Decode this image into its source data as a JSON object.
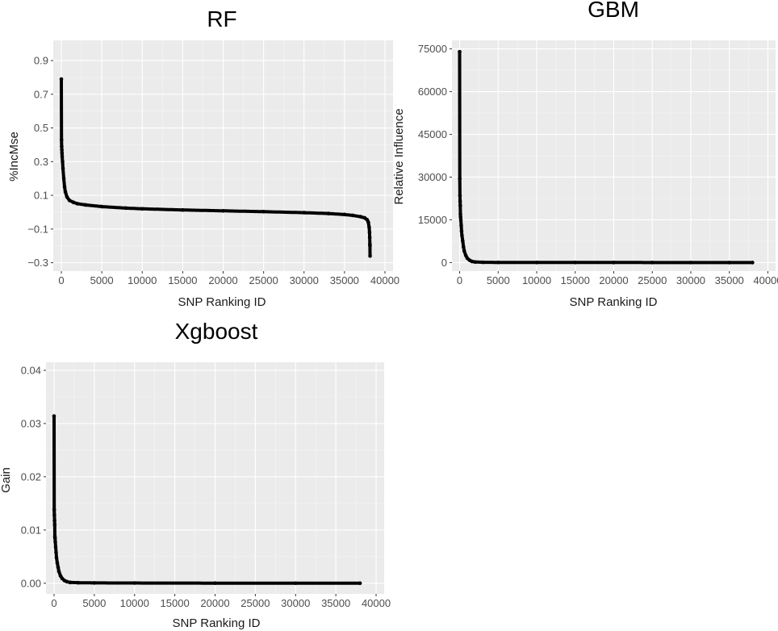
{
  "chart_data": [
    {
      "id": "rf",
      "type": "scatter",
      "title": "RF",
      "xlabel": "SNP Ranking ID",
      "ylabel": "%IncMse",
      "xlim": [
        -1000,
        41000
      ],
      "ylim": [
        -0.35,
        1.02
      ],
      "xticks": [
        0,
        5000,
        10000,
        15000,
        20000,
        25000,
        30000,
        35000,
        40000
      ],
      "xtick_labels": [
        "0",
        "5000",
        "10000",
        "15000",
        "20000",
        "25000",
        "30000",
        "35000",
        "40000"
      ],
      "yticks": [
        -0.3,
        -0.1,
        0.1,
        0.3,
        0.5,
        0.7,
        0.9
      ],
      "ytick_labels": [
        "−0.3",
        "−0.1",
        "0.1",
        "0.3",
        "0.5",
        "0.7",
        "0.9"
      ],
      "grid": true,
      "background": "#ebebeb",
      "point_color": "#000000",
      "series": [
        {
          "points": [
            [
              0,
              0.79
            ],
            [
              20,
              0.43
            ],
            [
              40,
              0.39
            ],
            [
              60,
              0.37
            ],
            [
              80,
              0.35
            ],
            [
              100,
              0.33
            ],
            [
              150,
              0.3
            ],
            [
              200,
              0.26
            ],
            [
              300,
              0.2
            ],
            [
              400,
              0.15
            ],
            [
              500,
              0.12
            ],
            [
              700,
              0.09
            ],
            [
              1000,
              0.07
            ],
            [
              1500,
              0.058
            ],
            [
              2000,
              0.05
            ],
            [
              3000,
              0.043
            ],
            [
              5000,
              0.033
            ],
            [
              8000,
              0.024
            ],
            [
              10000,
              0.02
            ],
            [
              15000,
              0.013
            ],
            [
              20000,
              0.008
            ],
            [
              25000,
              0.003
            ],
            [
              30000,
              -0.003
            ],
            [
              33000,
              -0.008
            ],
            [
              35000,
              -0.014
            ],
            [
              36000,
              -0.019
            ],
            [
              37000,
              -0.027
            ],
            [
              37500,
              -0.034
            ],
            [
              37800,
              -0.045
            ],
            [
              37950,
              -0.06
            ],
            [
              38050,
              -0.09
            ],
            [
              38100,
              -0.12
            ],
            [
              38120,
              -0.15
            ],
            [
              38140,
              -0.19
            ],
            [
              38150,
              -0.2
            ],
            [
              38160,
              -0.26
            ]
          ]
        }
      ]
    },
    {
      "id": "gbm",
      "type": "scatter",
      "title": "GBM",
      "xlabel": "SNP Ranking ID",
      "ylabel": "Relative Influence",
      "xlim": [
        -1000,
        41000
      ],
      "ylim": [
        -3000,
        78000
      ],
      "xticks": [
        0,
        5000,
        10000,
        15000,
        20000,
        25000,
        30000,
        35000,
        40000
      ],
      "xtick_labels": [
        "0",
        "5000",
        "10000",
        "15000",
        "20000",
        "25000",
        "30000",
        "35000",
        "40000"
      ],
      "yticks": [
        0,
        15000,
        30000,
        45000,
        60000,
        75000
      ],
      "ytick_labels": [
        "0",
        "15000",
        "30000",
        "45000",
        "60000",
        "75000"
      ],
      "grid": true,
      "background": "#ebebeb",
      "point_color": "#000000",
      "series": [
        {
          "points": [
            [
              0,
              74000
            ],
            [
              20,
              29500
            ],
            [
              40,
              23500
            ],
            [
              60,
              21500
            ],
            [
              80,
              20000
            ],
            [
              100,
              17000
            ],
            [
              120,
              16000
            ],
            [
              150,
              15000
            ],
            [
              200,
              13000
            ],
            [
              250,
              11000
            ],
            [
              300,
              9500
            ],
            [
              400,
              7500
            ],
            [
              500,
              5500
            ],
            [
              600,
              4000
            ],
            [
              800,
              2500
            ],
            [
              1000,
              1500
            ],
            [
              1300,
              800
            ],
            [
              1600,
              400
            ],
            [
              2000,
              200
            ],
            [
              3000,
              100
            ],
            [
              5000,
              60
            ],
            [
              10000,
              40
            ],
            [
              15000,
              30
            ],
            [
              20000,
              20
            ],
            [
              25000,
              15
            ],
            [
              30000,
              10
            ],
            [
              35000,
              5
            ],
            [
              38000,
              0
            ]
          ]
        }
      ]
    },
    {
      "id": "xgboost",
      "type": "scatter",
      "title": "Xgboost",
      "xlabel": "SNP Ranking ID",
      "ylabel": "Gain",
      "xlim": [
        -1000,
        41000
      ],
      "ylim": [
        -0.002,
        0.0415
      ],
      "xticks": [
        0,
        5000,
        10000,
        15000,
        20000,
        25000,
        30000,
        35000,
        40000
      ],
      "xtick_labels": [
        "0",
        "5000",
        "10000",
        "15000",
        "20000",
        "25000",
        "30000",
        "35000",
        "40000"
      ],
      "yticks": [
        0,
        0.01,
        0.02,
        0.03,
        0.04
      ],
      "ytick_labels": [
        "0.00",
        "0.01",
        "0.02",
        "0.03",
        "0.04"
      ],
      "grid": true,
      "background": "#ebebeb",
      "point_color": "#000000",
      "series": [
        {
          "points": [
            [
              0,
              0.0314
            ],
            [
              20,
              0.0138
            ],
            [
              40,
              0.0128
            ],
            [
              60,
              0.0118
            ],
            [
              80,
              0.011
            ],
            [
              100,
              0.0088
            ],
            [
              120,
              0.0085
            ],
            [
              150,
              0.0078
            ],
            [
              200,
              0.0068
            ],
            [
              250,
              0.0058
            ],
            [
              300,
              0.0048
            ],
            [
              400,
              0.0038
            ],
            [
              500,
              0.003
            ],
            [
              600,
              0.0022
            ],
            [
              800,
              0.0014
            ],
            [
              1000,
              0.0009
            ],
            [
              1300,
              0.0005
            ],
            [
              1600,
              0.0003
            ],
            [
              2000,
              0.00015
            ],
            [
              3000,
              0.0001
            ],
            [
              5000,
              6e-05
            ],
            [
              10000,
              4e-05
            ],
            [
              20000,
              2e-05
            ],
            [
              30000,
              1e-05
            ],
            [
              38000,
              0
            ]
          ]
        }
      ]
    }
  ]
}
